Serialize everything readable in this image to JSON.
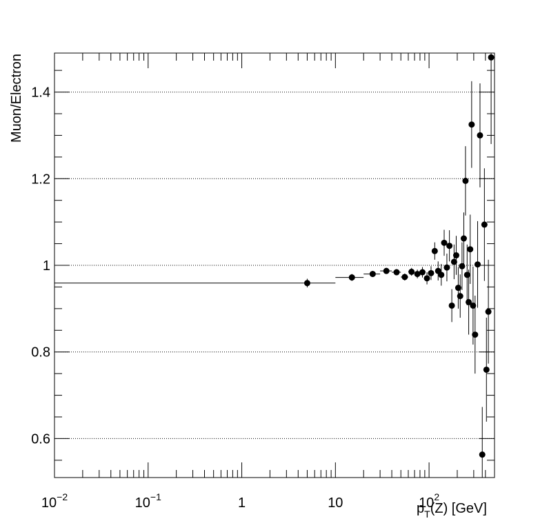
{
  "chart_data": {
    "type": "scatter",
    "xscale": "log",
    "xlim": [
      0.01,
      500
    ],
    "ylim": [
      0.51,
      1.49
    ],
    "xlabel": "p_T(Z) [GeV]",
    "xlabel_parts": {
      "main": "p",
      "sub": "T",
      "rest": "(Z) [GeV]"
    },
    "ylabel": "Muon/Electron",
    "grid": {
      "y": true,
      "x": false,
      "style": "dotted"
    },
    "x_ticks": [
      {
        "value": 0.01,
        "base": "10",
        "exp": "−2"
      },
      {
        "value": 0.1,
        "base": "10",
        "exp": "−1"
      },
      {
        "value": 1,
        "base": "1",
        "exp": ""
      },
      {
        "value": 10,
        "base": "10",
        "exp": ""
      },
      {
        "value": 100,
        "base": "10",
        "exp": "2"
      }
    ],
    "y_ticks": [
      {
        "value": 0.6,
        "label": "0.6"
      },
      {
        "value": 0.8,
        "label": "0.8"
      },
      {
        "value": 1.0,
        "label": "1"
      },
      {
        "value": 1.2,
        "label": "1.2"
      },
      {
        "value": 1.4,
        "label": "1.4"
      }
    ],
    "marker_color": "#000000",
    "points": [
      {
        "x": 5,
        "xlo": 0.01,
        "xhi": 10,
        "y": 0.959,
        "err": 0.01
      },
      {
        "x": 15,
        "xlo": 10,
        "xhi": 20,
        "y": 0.972,
        "err": 0.008
      },
      {
        "x": 25,
        "xlo": 20,
        "xhi": 30,
        "y": 0.98,
        "err": 0.007
      },
      {
        "x": 35,
        "xlo": 30,
        "xhi": 40,
        "y": 0.987,
        "err": 0.007
      },
      {
        "x": 45,
        "xlo": 40,
        "xhi": 50,
        "y": 0.984,
        "err": 0.007
      },
      {
        "x": 55,
        "xlo": 50,
        "xhi": 60,
        "y": 0.973,
        "err": 0.008
      },
      {
        "x": 65,
        "xlo": 60,
        "xhi": 70,
        "y": 0.985,
        "err": 0.009
      },
      {
        "x": 75,
        "xlo": 70,
        "xhi": 80,
        "y": 0.98,
        "err": 0.01
      },
      {
        "x": 85,
        "xlo": 80,
        "xhi": 90,
        "y": 0.984,
        "err": 0.012
      },
      {
        "x": 95,
        "xlo": 90,
        "xhi": 100,
        "y": 0.97,
        "err": 0.014
      },
      {
        "x": 105,
        "xlo": 100,
        "xhi": 110,
        "y": 0.982,
        "err": 0.016
      },
      {
        "x": 115,
        "xlo": 110,
        "xhi": 120,
        "y": 1.033,
        "err": 0.02
      },
      {
        "x": 125,
        "xlo": 120,
        "xhi": 130,
        "y": 0.987,
        "err": 0.022
      },
      {
        "x": 135,
        "xlo": 130,
        "xhi": 140,
        "y": 0.978,
        "err": 0.025
      },
      {
        "x": 145,
        "xlo": 140,
        "xhi": 150,
        "y": 1.052,
        "err": 0.03
      },
      {
        "x": 155,
        "xlo": 150,
        "xhi": 160,
        "y": 0.995,
        "err": 0.032
      },
      {
        "x": 165,
        "xlo": 160,
        "xhi": 170,
        "y": 1.045,
        "err": 0.036
      },
      {
        "x": 175,
        "xlo": 170,
        "xhi": 180,
        "y": 0.907,
        "err": 0.038
      },
      {
        "x": 185,
        "xlo": 180,
        "xhi": 190,
        "y": 1.008,
        "err": 0.04
      },
      {
        "x": 195,
        "xlo": 190,
        "xhi": 200,
        "y": 1.023,
        "err": 0.045
      },
      {
        "x": 205,
        "xlo": 200,
        "xhi": 210,
        "y": 0.948,
        "err": 0.048
      },
      {
        "x": 215,
        "xlo": 210,
        "xhi": 220,
        "y": 0.929,
        "err": 0.05
      },
      {
        "x": 225,
        "xlo": 220,
        "xhi": 230,
        "y": 0.998,
        "err": 0.055
      },
      {
        "x": 235,
        "xlo": 230,
        "xhi": 240,
        "y": 1.062,
        "err": 0.06
      },
      {
        "x": 245,
        "xlo": 240,
        "xhi": 250,
        "y": 1.195,
        "err": 0.08
      },
      {
        "x": 255,
        "xlo": 250,
        "xhi": 260,
        "y": 0.978,
        "err": 0.07
      },
      {
        "x": 265,
        "xlo": 260,
        "xhi": 270,
        "y": 0.915,
        "err": 0.075
      },
      {
        "x": 275,
        "xlo": 270,
        "xhi": 280,
        "y": 1.037,
        "err": 0.08
      },
      {
        "x": 285,
        "xlo": 280,
        "xhi": 290,
        "y": 1.325,
        "err": 0.1
      },
      {
        "x": 295,
        "xlo": 290,
        "xhi": 300,
        "y": 0.907,
        "err": 0.09
      },
      {
        "x": 310,
        "xlo": 300,
        "xhi": 320,
        "y": 0.84,
        "err": 0.09
      },
      {
        "x": 330,
        "xlo": 320,
        "xhi": 340,
        "y": 1.002,
        "err": 0.1
      },
      {
        "x": 350,
        "xlo": 340,
        "xhi": 360,
        "y": 1.3,
        "err": 0.12
      },
      {
        "x": 370,
        "xlo": 360,
        "xhi": 380,
        "y": 0.563,
        "err": 0.11
      },
      {
        "x": 390,
        "xlo": 380,
        "xhi": 400,
        "y": 1.094,
        "err": 0.13
      },
      {
        "x": 410,
        "xlo": 400,
        "xhi": 420,
        "y": 0.759,
        "err": 0.12
      },
      {
        "x": 430,
        "xlo": 420,
        "xhi": 440,
        "y": 0.893,
        "err": 0.12
      },
      {
        "x": 460,
        "xlo": 440,
        "xhi": 480,
        "y": 1.48,
        "err": 0.2
      }
    ]
  }
}
